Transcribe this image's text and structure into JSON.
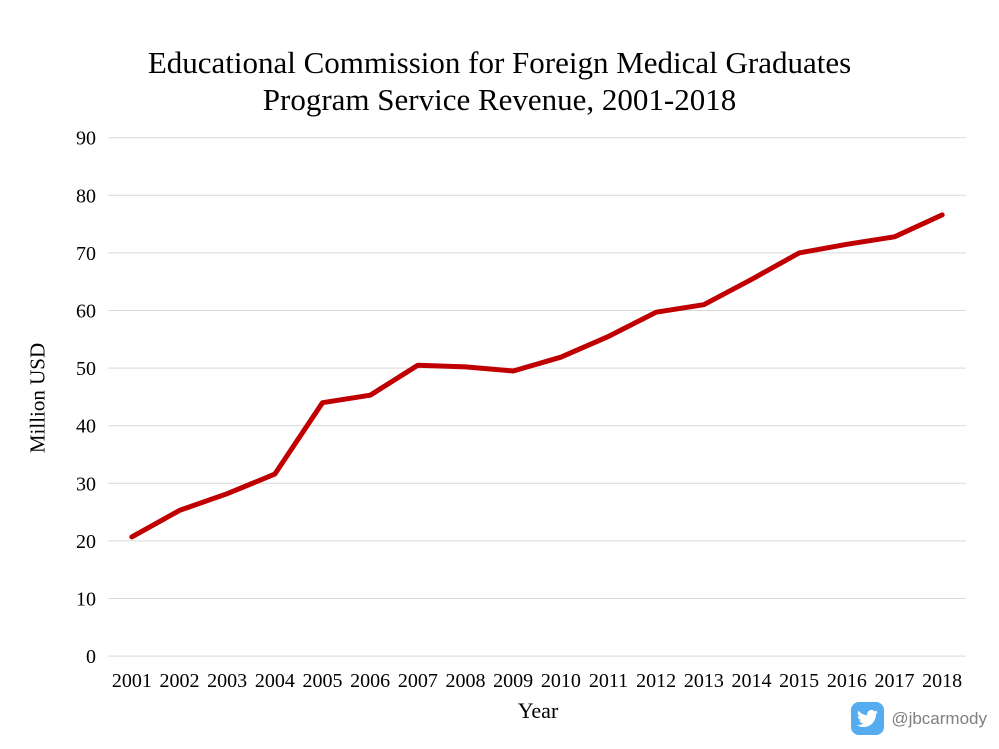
{
  "title": {
    "line1": "Educational Commission for Foreign Medical Graduates",
    "line2": "Program Service Revenue, 2001-2018"
  },
  "axes": {
    "y_label": "Million USD",
    "x_label": "Year"
  },
  "watermark": {
    "icon": "twitter-bird-icon",
    "handle": "@jbcarmody"
  },
  "colors": {
    "line": "#C00000",
    "gridline": "#D9D9D9",
    "text": "#000000",
    "handle_text": "#808080",
    "twitter_blue": "#55ACEE",
    "background": "#FFFFFF"
  },
  "chart_data": {
    "type": "line",
    "title": "Educational Commission for Foreign Medical Graduates Program Service Revenue, 2001-2018",
    "xlabel": "Year",
    "ylabel": "Million USD",
    "x": [
      2001,
      2002,
      2003,
      2004,
      2005,
      2006,
      2007,
      2008,
      2009,
      2010,
      2011,
      2012,
      2013,
      2014,
      2015,
      2016,
      2017,
      2018
    ],
    "series": [
      {
        "name": "Program Service Revenue (Million USD)",
        "color": "#C00000",
        "values": [
          20.7,
          25.3,
          28.2,
          31.6,
          44.0,
          45.3,
          50.5,
          50.2,
          49.5,
          51.9,
          55.5,
          59.7,
          61.0,
          65.4,
          70.0,
          71.5,
          72.8,
          76.6
        ]
      }
    ],
    "ylim": [
      0,
      90
    ],
    "y_ticks": [
      0,
      10,
      20,
      30,
      40,
      50,
      60,
      70,
      80,
      90
    ],
    "grid": "horizontal",
    "legend": "none"
  }
}
